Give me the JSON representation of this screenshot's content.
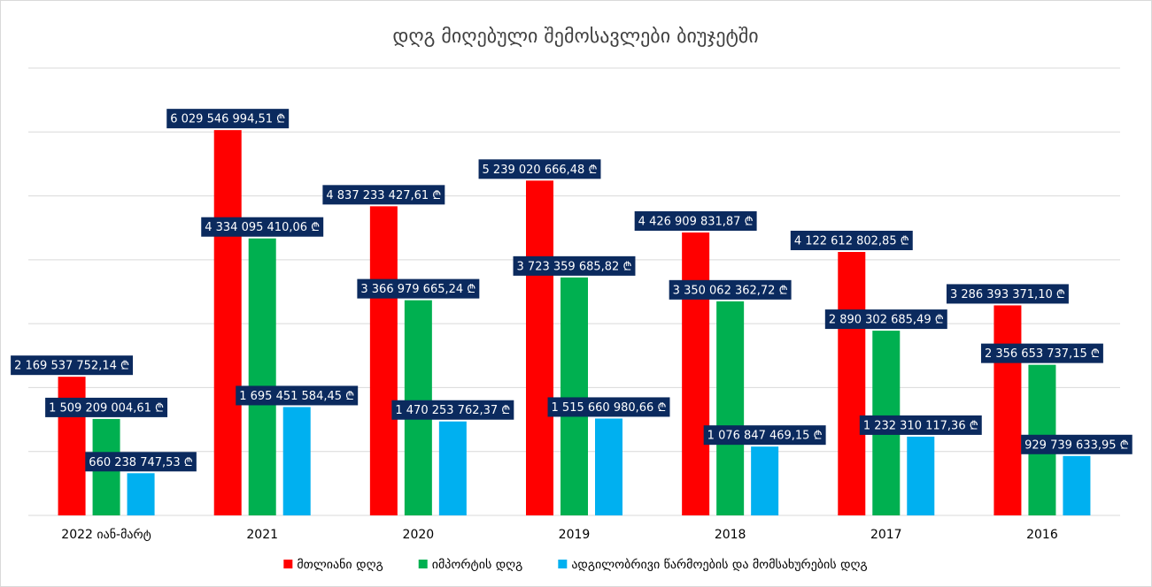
{
  "chart_data": {
    "type": "bar",
    "title": "დღგ მიღებული შემოსავლები ბიუჯეტში",
    "categories": [
      "2022 იან-მარტ",
      "2021",
      "2020",
      "2019",
      "2018",
      "2017",
      "2016"
    ],
    "series": [
      {
        "name": "მთლიანი დღგ",
        "color": "#ff0000",
        "values": [
          2169537752.14,
          6029546994.51,
          4837233427.61,
          5239020666.48,
          4426909831.87,
          4122612802.85,
          3286393371.1
        ],
        "value_labels": [
          "2 169 537 752,14 ₾",
          "6 029 546 994,51 ₾",
          "4 837 233 427,61 ₾",
          "5 239 020 666,48 ₾",
          "4 426 909 831,87 ₾",
          "4 122 612 802,85 ₾",
          "3 286 393 371,10 ₾"
        ]
      },
      {
        "name": "იმპორტის დღგ",
        "color": "#00b050",
        "values": [
          1509209004.61,
          4334095410.06,
          3366979665.24,
          3723359685.82,
          3350062362.72,
          2890302685.49,
          2356653737.15
        ],
        "value_labels": [
          "1 509 209 004,61 ₾",
          "4 334 095 410,06 ₾",
          "3 366 979 665,24 ₾",
          "3 723 359 685,82 ₾",
          "3 350 062 362,72 ₾",
          "2 890 302 685,49 ₾",
          "2 356 653 737,15 ₾"
        ]
      },
      {
        "name": "ადგილობრივი წარმოების და მომსახურების დღგ",
        "color": "#00b0f0",
        "values": [
          660238747.53,
          1695451584.45,
          1470253762.37,
          1515660980.66,
          1076847469.15,
          1232310117.36,
          929739633.95
        ],
        "value_labels": [
          "660 238 747,53 ₾",
          "1 695 451 584,45 ₾",
          "1 470 253 762,37 ₾",
          "1 515 660 980,66 ₾",
          "1 076 847 469,15 ₾",
          "1 232 310 117,36 ₾",
          "929 739 633,95 ₾"
        ]
      }
    ],
    "ylim": [
      0,
      7000000000
    ],
    "yticks": [
      0,
      1000000000,
      2000000000,
      3000000000,
      4000000000,
      5000000000,
      6000000000,
      7000000000
    ],
    "grid": true,
    "legend": "bottom"
  }
}
